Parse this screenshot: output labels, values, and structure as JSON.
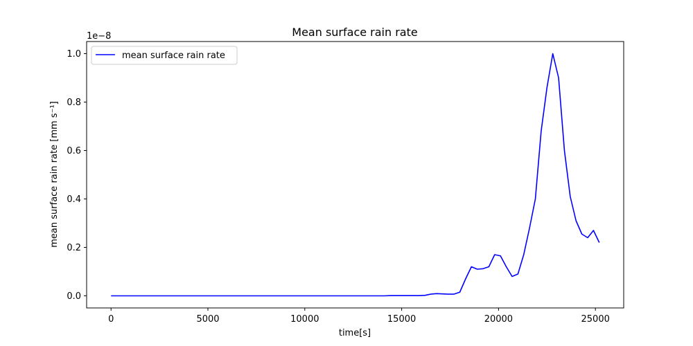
{
  "chart_data": {
    "type": "line",
    "title": "Mean surface rain rate",
    "xlabel": "time[s]",
    "ylabel": "mean surface rain rate [mm s⁻¹]",
    "y_offset_text": "1e−8",
    "xlim": [
      -1260,
      26460
    ],
    "ylim": [
      -0.05,
      1.05
    ],
    "x_ticks": [
      0,
      5000,
      10000,
      15000,
      20000,
      25000
    ],
    "x_tick_labels": [
      "0",
      "5000",
      "10000",
      "15000",
      "20000",
      "25000"
    ],
    "y_ticks": [
      0.0,
      0.2,
      0.4,
      0.6,
      0.8,
      1.0
    ],
    "y_tick_labels": [
      "0.0",
      "0.2",
      "0.4",
      "0.6",
      "0.8",
      "1.0"
    ],
    "grid": false,
    "legend_position": "upper-left",
    "series": [
      {
        "name": "mean surface rain rate",
        "color": "#0000ff",
        "x": [
          0,
          300,
          600,
          900,
          1200,
          1500,
          1800,
          2100,
          2400,
          2700,
          3000,
          3300,
          3600,
          3900,
          4200,
          4500,
          4800,
          5100,
          5400,
          5700,
          6000,
          6300,
          6600,
          6900,
          7200,
          7500,
          7800,
          8100,
          8400,
          8700,
          9000,
          9300,
          9600,
          9900,
          10200,
          10500,
          10800,
          11100,
          11400,
          11700,
          12000,
          12300,
          12600,
          12900,
          13200,
          13500,
          13800,
          14100,
          14400,
          14700,
          15000,
          15300,
          15600,
          15900,
          16200,
          16500,
          16800,
          17100,
          17400,
          17700,
          18000,
          18300,
          18600,
          18900,
          19200,
          19500,
          19800,
          20100,
          20400,
          20700,
          21000,
          21300,
          21600,
          21900,
          22200,
          22500,
          22800,
          23100,
          23400,
          23700,
          24000,
          24300,
          24600,
          24900,
          25200
        ],
        "y": [
          0,
          0,
          0,
          0,
          0,
          0,
          0,
          0,
          0,
          0,
          0,
          0,
          0,
          0,
          0,
          0,
          0,
          0,
          0,
          0,
          0,
          0,
          0,
          0,
          0,
          0,
          0,
          0,
          0,
          0,
          0,
          0,
          0,
          0,
          0,
          0,
          0,
          0,
          0,
          0,
          0,
          0,
          0,
          0,
          0,
          0,
          0,
          0,
          0.001,
          0.001,
          0.001,
          0.001,
          0.001,
          0.001,
          0.002,
          0.007,
          0.009,
          0.008,
          0.007,
          0.007,
          0.015,
          0.07,
          0.12,
          0.11,
          0.112,
          0.12,
          0.17,
          0.165,
          0.12,
          0.08,
          0.09,
          0.17,
          0.28,
          0.4,
          0.68,
          0.86,
          1.0,
          0.9,
          0.6,
          0.41,
          0.31,
          0.255,
          0.24,
          0.27,
          0.22
        ]
      }
    ]
  }
}
